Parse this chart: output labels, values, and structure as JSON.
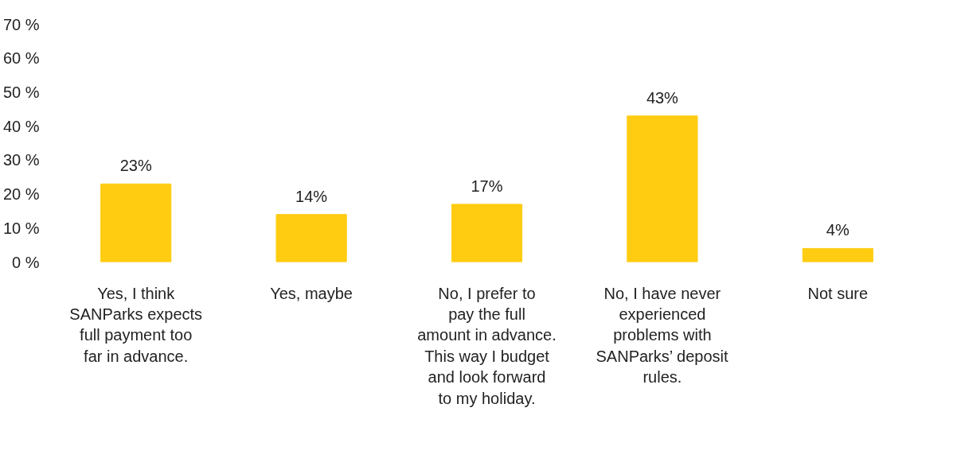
{
  "chart_data": {
    "type": "bar",
    "categories": [
      "Yes, I think SANParks expects full payment too far in advance.",
      "Yes, maybe",
      "No, I prefer to pay the full amount in advance. This way I budget and look forward to my holiday.",
      "No, I have never experienced problems with SANParks’ deposit rules.",
      "Not sure"
    ],
    "values": [
      23,
      14,
      17,
      43,
      4
    ],
    "value_labels": [
      "23%",
      "14%",
      "17%",
      "43%",
      "4%"
    ],
    "color": "#ffcc11",
    "ylim": [
      0,
      70
    ],
    "yticks": [
      {
        "value": 0,
        "label": "0 %"
      },
      {
        "value": 10,
        "label": "10 %"
      },
      {
        "value": 20,
        "label": "20 %"
      },
      {
        "value": 30,
        "label": "30 %"
      },
      {
        "value": 40,
        "label": "40 %"
      },
      {
        "value": 50,
        "label": "50 %"
      },
      {
        "value": 60,
        "label": "60 %"
      },
      {
        "value": 70,
        "label": "70 %"
      }
    ],
    "grid": false
  }
}
